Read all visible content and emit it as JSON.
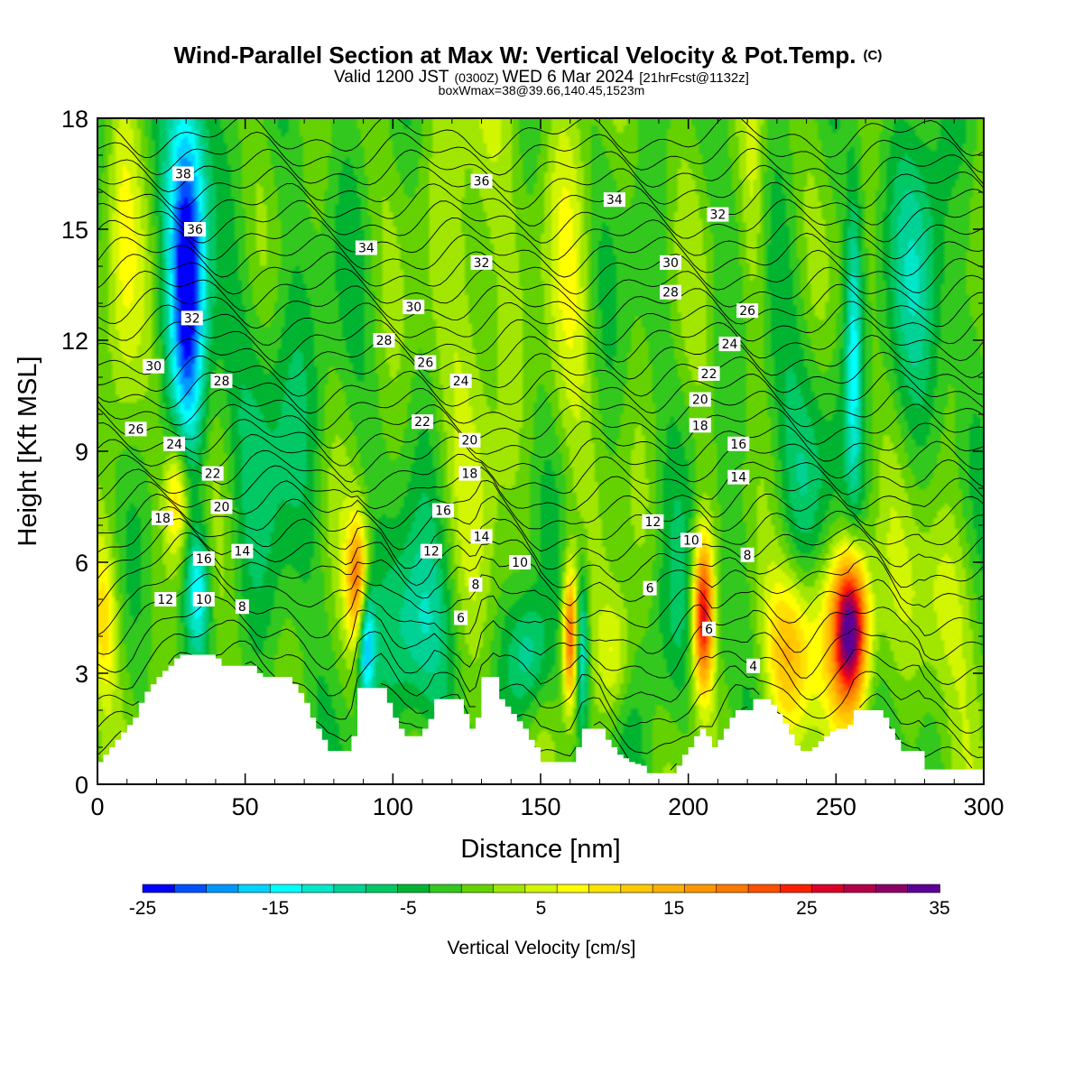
{
  "title": "Wind-Parallel Section at Max W: Vertical Velocity & Pot.Temp.",
  "title_mark": "(C)",
  "subtitle_parts": [
    "Valid 1200 JST",
    "(0300Z)",
    "WED 6 Mar 2024",
    "[21hrFcst@1132z]"
  ],
  "subtitle2": "boxWmax=38@39.66,140.45,1523m",
  "colors": {
    "palette": [
      "#0000ff",
      "#0050ff",
      "#0096ff",
      "#00d2ff",
      "#00ffff",
      "#00e6c8",
      "#00d296",
      "#00c864",
      "#00b432",
      "#32c81e",
      "#64d200",
      "#a0e600",
      "#d2f500",
      "#ffff00",
      "#ffe100",
      "#ffc800",
      "#ffaf00",
      "#ff9600",
      "#ff7800",
      "#ff5000",
      "#ff1e00",
      "#dc0028",
      "#b40046",
      "#8c0064",
      "#5a0096"
    ],
    "terrain": "#ffffff",
    "contour": "#000000"
  },
  "chart_data": {
    "type": "heatmap",
    "x": {
      "label": "Distance [nm]",
      "range": [
        0,
        300
      ],
      "ticks": [
        "0",
        "50",
        "100",
        "150",
        "200",
        "250",
        "300"
      ],
      "tick_values": [
        0,
        50,
        100,
        150,
        200,
        250,
        300
      ]
    },
    "y": {
      "label": "Height [Kft MSL]",
      "range": [
        0,
        18
      ],
      "ticks": [
        "0",
        "3",
        "6",
        "9",
        "12",
        "15",
        "18"
      ],
      "tick_values": [
        0,
        3,
        6,
        9,
        12,
        15,
        18
      ]
    },
    "colorbar": {
      "label": "Vertical Velocity [cm/s]",
      "range": [
        -25,
        35
      ],
      "step": 2.5,
      "ticks": [
        "-25",
        "-15",
        "-5",
        "5",
        "15",
        "25",
        "35"
      ],
      "tick_values": [
        -25,
        -15,
        -5,
        5,
        15,
        25,
        35
      ]
    },
    "background_w": 0,
    "w_features": [
      {
        "x": 30,
        "z": 15.5,
        "sx": 5,
        "sz": 3.5,
        "w": -17
      },
      {
        "x": 31,
        "z": 12,
        "sx": 4,
        "sz": 3,
        "w": -12
      },
      {
        "x": 8,
        "z": 15,
        "sx": 4,
        "sz": 6,
        "w": 6
      },
      {
        "x": 27,
        "z": 7.8,
        "sx": 3,
        "sz": 1.2,
        "w": 14
      },
      {
        "x": 34,
        "z": 5.2,
        "sx": 3,
        "sz": 1.2,
        "w": -14
      },
      {
        "x": 2,
        "z": 4.5,
        "sx": 3,
        "sz": 1.5,
        "w": 10
      },
      {
        "x": 88,
        "z": 5.5,
        "sx": 2.5,
        "sz": 1.2,
        "w": 20
      },
      {
        "x": 91,
        "z": 3.8,
        "sx": 2,
        "sz": 1.2,
        "w": -18
      },
      {
        "x": 108,
        "z": 4,
        "sx": 8,
        "sz": 2,
        "w": -10
      },
      {
        "x": 128,
        "z": 14,
        "sx": 8,
        "sz": 6,
        "w": 6
      },
      {
        "x": 160,
        "z": 14,
        "sx": 6,
        "sz": 5,
        "w": 5
      },
      {
        "x": 160,
        "z": 4,
        "sx": 1.8,
        "sz": 1.3,
        "w": 24
      },
      {
        "x": 164,
        "z": 3.6,
        "sx": 1.5,
        "sz": 1.5,
        "w": -14
      },
      {
        "x": 146,
        "z": 3.5,
        "sx": 5,
        "sz": 1.2,
        "w": -10
      },
      {
        "x": 175,
        "z": 3.5,
        "sx": 4,
        "sz": 1.2,
        "w": 8
      },
      {
        "x": 205,
        "z": 4.6,
        "sx": 2.5,
        "sz": 1.5,
        "w": 30
      },
      {
        "x": 212,
        "z": 4.5,
        "sx": 4,
        "sz": 1.5,
        "w": -3
      },
      {
        "x": 234,
        "z": 3.6,
        "sx": 6,
        "sz": 1.6,
        "w": 14
      },
      {
        "x": 255,
        "z": 4.2,
        "sx": 4,
        "sz": 1.4,
        "w": 33
      },
      {
        "x": 248,
        "z": 4.2,
        "sx": 8,
        "sz": 2,
        "w": 10
      },
      {
        "x": 222,
        "z": 16,
        "sx": 3,
        "sz": 3,
        "w": 5
      },
      {
        "x": 256,
        "z": 12,
        "sx": 2,
        "sz": 3,
        "w": -12
      },
      {
        "x": 280,
        "z": 14,
        "sx": 7,
        "sz": 3,
        "w": -8
      },
      {
        "x": 60,
        "z": 10,
        "sx": 10,
        "sz": 3,
        "w": -6
      },
      {
        "x": 240,
        "z": 8,
        "sx": 10,
        "sz": 3,
        "w": -6
      },
      {
        "x": 285,
        "z": 5,
        "sx": 8,
        "sz": 2,
        "w": 7
      },
      {
        "x": 193,
        "z": 4,
        "sx": 6,
        "sz": 2,
        "w": -4
      }
    ],
    "terrain_kft": [
      [
        0,
        0.6
      ],
      [
        3,
        0.9
      ],
      [
        6,
        1.2
      ],
      [
        9,
        1.5
      ],
      [
        12,
        1.8
      ],
      [
        15,
        2.4
      ],
      [
        18,
        2.7
      ],
      [
        21,
        3.0
      ],
      [
        24,
        3.2
      ],
      [
        27,
        3.5
      ],
      [
        39,
        3.5
      ],
      [
        42,
        3.2
      ],
      [
        52,
        3.2
      ],
      [
        55,
        2.9
      ],
      [
        64,
        2.9
      ],
      [
        67,
        2.6
      ],
      [
        70,
        2.2
      ],
      [
        72,
        1.8
      ],
      [
        74,
        1.5
      ],
      [
        76,
        1.2
      ],
      [
        78,
        0.9
      ],
      [
        84,
        0.9
      ],
      [
        86,
        1.3
      ],
      [
        88,
        2.6
      ],
      [
        96,
        2.6
      ],
      [
        98,
        2.2
      ],
      [
        100,
        1.8
      ],
      [
        102,
        1.5
      ],
      [
        104,
        1.3
      ],
      [
        108,
        1.3
      ],
      [
        110,
        1.5
      ],
      [
        113,
        1.9
      ],
      [
        114,
        2.3
      ],
      [
        122,
        2.3
      ],
      [
        124,
        1.9
      ],
      [
        126,
        1.5
      ],
      [
        128,
        1.8
      ],
      [
        130,
        2.9
      ],
      [
        134,
        2.9
      ],
      [
        136,
        2.3
      ],
      [
        140,
        1.9
      ],
      [
        144,
        1.5
      ],
      [
        146,
        1.2
      ],
      [
        148,
        1.0
      ],
      [
        150,
        0.6
      ],
      [
        160,
        0.6
      ],
      [
        162,
        1.0
      ],
      [
        164,
        1.5
      ],
      [
        170,
        1.5
      ],
      [
        172,
        1.2
      ],
      [
        174,
        1.0
      ],
      [
        176,
        0.8
      ],
      [
        180,
        0.6
      ],
      [
        184,
        0.5
      ],
      [
        186,
        0.3
      ],
      [
        194,
        0.3
      ],
      [
        196,
        0.5
      ],
      [
        198,
        0.8
      ],
      [
        200,
        1.0
      ],
      [
        202,
        1.3
      ],
      [
        204,
        1.5
      ],
      [
        206,
        1.3
      ],
      [
        208,
        1.0
      ],
      [
        210,
        1.2
      ],
      [
        212,
        1.5
      ],
      [
        214,
        1.8
      ],
      [
        216,
        2.0
      ],
      [
        220,
        2.0
      ],
      [
        222,
        2.3
      ],
      [
        227,
        2.3
      ],
      [
        229,
        2.0
      ],
      [
        231,
        1.8
      ],
      [
        233,
        1.5
      ],
      [
        235,
        1.2
      ],
      [
        237,
        0.9
      ],
      [
        241,
        0.9
      ],
      [
        243,
        1.1
      ],
      [
        246,
        1.3
      ],
      [
        249,
        1.5
      ],
      [
        253,
        1.5
      ],
      [
        255,
        1.7
      ],
      [
        256,
        2.0
      ],
      [
        264,
        2.0
      ],
      [
        266,
        1.8
      ],
      [
        268,
        1.5
      ],
      [
        270,
        1.2
      ],
      [
        272,
        0.9
      ],
      [
        278,
        0.9
      ],
      [
        280,
        0.4
      ],
      [
        298,
        0.4
      ],
      [
        300,
        0.4
      ]
    ],
    "theta_contours": {
      "levels_from": 4,
      "levels_to": 38,
      "step": 1
    },
    "theta_labels": [
      {
        "text": "38",
        "x": 29,
        "z": 16.5
      },
      {
        "text": "36",
        "x": 33,
        "z": 15.0
      },
      {
        "text": "32",
        "x": 32,
        "z": 12.6
      },
      {
        "text": "30",
        "x": 19,
        "z": 11.3
      },
      {
        "text": "28",
        "x": 42,
        "z": 10.9
      },
      {
        "text": "26",
        "x": 13,
        "z": 9.6
      },
      {
        "text": "24",
        "x": 26,
        "z": 9.2
      },
      {
        "text": "22",
        "x": 39,
        "z": 8.4
      },
      {
        "text": "20",
        "x": 42,
        "z": 7.5
      },
      {
        "text": "18",
        "x": 22,
        "z": 7.2
      },
      {
        "text": "16",
        "x": 36,
        "z": 6.1
      },
      {
        "text": "14",
        "x": 49,
        "z": 6.3
      },
      {
        "text": "12",
        "x": 23,
        "z": 5.0
      },
      {
        "text": "10",
        "x": 36,
        "z": 5.0
      },
      {
        "text": "8",
        "x": 49,
        "z": 4.8
      },
      {
        "text": "34",
        "x": 91,
        "z": 14.5
      },
      {
        "text": "30",
        "x": 107,
        "z": 12.9
      },
      {
        "text": "28",
        "x": 97,
        "z": 12.0
      },
      {
        "text": "26",
        "x": 111,
        "z": 11.4
      },
      {
        "text": "24",
        "x": 123,
        "z": 10.9
      },
      {
        "text": "22",
        "x": 110,
        "z": 9.8
      },
      {
        "text": "20",
        "x": 126,
        "z": 9.3
      },
      {
        "text": "18",
        "x": 126,
        "z": 8.4
      },
      {
        "text": "16",
        "x": 117,
        "z": 7.4
      },
      {
        "text": "12",
        "x": 113,
        "z": 6.3
      },
      {
        "text": "14",
        "x": 130,
        "z": 6.7
      },
      {
        "text": "10",
        "x": 143,
        "z": 6.0
      },
      {
        "text": "8",
        "x": 128,
        "z": 5.4
      },
      {
        "text": "6",
        "x": 123,
        "z": 4.5
      },
      {
        "text": "36",
        "x": 130,
        "z": 16.3
      },
      {
        "text": "32",
        "x": 130,
        "z": 14.1
      },
      {
        "text": "34",
        "x": 175,
        "z": 15.8
      },
      {
        "text": "32",
        "x": 210,
        "z": 15.4
      },
      {
        "text": "30",
        "x": 194,
        "z": 14.1
      },
      {
        "text": "28",
        "x": 194,
        "z": 13.3
      },
      {
        "text": "26",
        "x": 220,
        "z": 12.8
      },
      {
        "text": "24",
        "x": 214,
        "z": 11.9
      },
      {
        "text": "22",
        "x": 207,
        "z": 11.1
      },
      {
        "text": "20",
        "x": 204,
        "z": 10.4
      },
      {
        "text": "18",
        "x": 204,
        "z": 9.7
      },
      {
        "text": "16",
        "x": 217,
        "z": 9.2
      },
      {
        "text": "14",
        "x": 217,
        "z": 8.3
      },
      {
        "text": "12",
        "x": 188,
        "z": 7.1
      },
      {
        "text": "10",
        "x": 201,
        "z": 6.6
      },
      {
        "text": "8",
        "x": 220,
        "z": 6.2
      },
      {
        "text": "6",
        "x": 187,
        "z": 5.3
      },
      {
        "text": "6",
        "x": 207,
        "z": 4.2
      },
      {
        "text": "4",
        "x": 222,
        "z": 3.2
      }
    ]
  }
}
